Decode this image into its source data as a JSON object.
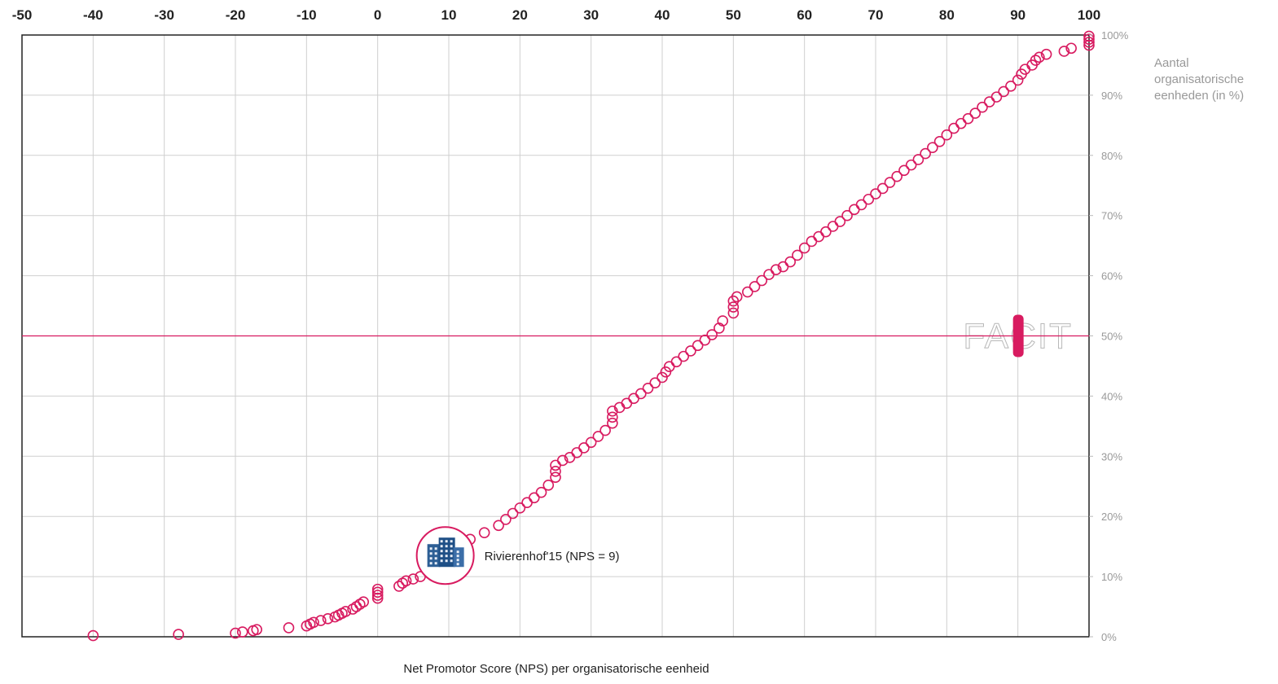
{
  "chart_data": {
    "type": "scatter",
    "xlabel": "Net Promotor Score (NPS) per organisatorische eenheid",
    "ylabel": [
      "Aantal",
      "organisatorische",
      "eenheden (in %)"
    ],
    "xlim": [
      -50,
      100
    ],
    "ylim": [
      0,
      100
    ],
    "x_ticks": [
      "-50",
      "-40",
      "-30",
      "-20",
      "-10",
      "0",
      "10",
      "20",
      "30",
      "40",
      "50",
      "60",
      "70",
      "80",
      "90",
      "100"
    ],
    "x_tick_values": [
      -50,
      -40,
      -30,
      -20,
      -10,
      0,
      10,
      20,
      30,
      40,
      50,
      60,
      70,
      80,
      90,
      100
    ],
    "y_ticks": [
      "0%",
      "10%",
      "20%",
      "30%",
      "40%",
      "50%",
      "60%",
      "70%",
      "80%",
      "90%",
      "100%"
    ],
    "y_tick_values": [
      0,
      10,
      20,
      30,
      40,
      50,
      60,
      70,
      80,
      90,
      100
    ],
    "grid": true,
    "reference_line": {
      "y": 50,
      "color": "#d81b60"
    },
    "highlight": {
      "x": 9.5,
      "y": 13.5,
      "label": "Rivierenhof'15 (NPS = 9)",
      "icon": "building-icon"
    },
    "watermark": "FACIT",
    "series": [
      {
        "marker": "open-circle",
        "color": "#d81b60",
        "points": [
          [
            -40,
            0.2
          ],
          [
            -28,
            0.4
          ],
          [
            -20,
            0.6
          ],
          [
            -19,
            0.8
          ],
          [
            -17.5,
            1.0
          ],
          [
            -17,
            1.2
          ],
          [
            -12.5,
            1.5
          ],
          [
            -10,
            1.8
          ],
          [
            -9.5,
            2.1
          ],
          [
            -9,
            2.4
          ],
          [
            -8,
            2.7
          ],
          [
            -7,
            3.0
          ],
          [
            -6,
            3.3
          ],
          [
            -5.5,
            3.6
          ],
          [
            -5,
            3.9
          ],
          [
            -4.5,
            4.2
          ],
          [
            -3.5,
            4.6
          ],
          [
            -3,
            5.0
          ],
          [
            -2.5,
            5.4
          ],
          [
            -2,
            5.8
          ],
          [
            0,
            6.4
          ],
          [
            0,
            6.9
          ],
          [
            0,
            7.4
          ],
          [
            0,
            7.9
          ],
          [
            3,
            8.4
          ],
          [
            3.5,
            8.9
          ],
          [
            4,
            9.3
          ],
          [
            5,
            9.6
          ],
          [
            6,
            10.0
          ],
          [
            9,
            13.0
          ],
          [
            10,
            14.0
          ],
          [
            11,
            15.0
          ],
          [
            13,
            16.2
          ],
          [
            15,
            17.3
          ],
          [
            17,
            18.5
          ],
          [
            18,
            19.5
          ],
          [
            19,
            20.5
          ],
          [
            20,
            21.4
          ],
          [
            21,
            22.3
          ],
          [
            22,
            23.1
          ],
          [
            23,
            24.0
          ],
          [
            24,
            25.2
          ],
          [
            25,
            26.5
          ],
          [
            25,
            27.5
          ],
          [
            25,
            28.5
          ],
          [
            26,
            29.3
          ],
          [
            27,
            29.8
          ],
          [
            28,
            30.6
          ],
          [
            29,
            31.4
          ],
          [
            30,
            32.3
          ],
          [
            31,
            33.3
          ],
          [
            32,
            34.3
          ],
          [
            33,
            35.5
          ],
          [
            33,
            36.5
          ],
          [
            33,
            37.5
          ],
          [
            34,
            38.1
          ],
          [
            35,
            38.8
          ],
          [
            36,
            39.6
          ],
          [
            37,
            40.4
          ],
          [
            38,
            41.3
          ],
          [
            39,
            42.2
          ],
          [
            40,
            43.1
          ],
          [
            40.5,
            44.0
          ],
          [
            41,
            44.9
          ],
          [
            42,
            45.7
          ],
          [
            43,
            46.6
          ],
          [
            44,
            47.5
          ],
          [
            45,
            48.4
          ],
          [
            46,
            49.3
          ],
          [
            47,
            50.2
          ],
          [
            48,
            51.3
          ],
          [
            48.5,
            52.5
          ],
          [
            50,
            53.8
          ],
          [
            50,
            54.8
          ],
          [
            50,
            55.8
          ],
          [
            50.5,
            56.5
          ],
          [
            52,
            57.3
          ],
          [
            53,
            58.2
          ],
          [
            54,
            59.2
          ],
          [
            55,
            60.2
          ],
          [
            56,
            61.0
          ],
          [
            57,
            61.5
          ],
          [
            58,
            62.3
          ],
          [
            59,
            63.4
          ],
          [
            60,
            64.6
          ],
          [
            61,
            65.7
          ],
          [
            62,
            66.5
          ],
          [
            63,
            67.3
          ],
          [
            64,
            68.2
          ],
          [
            65,
            69.0
          ],
          [
            66,
            70.0
          ],
          [
            67,
            71.0
          ],
          [
            68,
            71.8
          ],
          [
            69,
            72.7
          ],
          [
            70,
            73.6
          ],
          [
            71,
            74.5
          ],
          [
            72,
            75.5
          ],
          [
            73,
            76.5
          ],
          [
            74,
            77.5
          ],
          [
            75,
            78.4
          ],
          [
            76,
            79.3
          ],
          [
            77,
            80.3
          ],
          [
            78,
            81.3
          ],
          [
            79,
            82.3
          ],
          [
            80,
            83.4
          ],
          [
            81,
            84.5
          ],
          [
            82,
            85.3
          ],
          [
            83,
            86.1
          ],
          [
            84,
            87.0
          ],
          [
            85,
            88.0
          ],
          [
            86,
            88.9
          ],
          [
            87,
            89.7
          ],
          [
            88,
            90.6
          ],
          [
            89,
            91.5
          ],
          [
            90,
            92.5
          ],
          [
            90.5,
            93.5
          ],
          [
            91,
            94.3
          ],
          [
            92,
            95.0
          ],
          [
            92.5,
            95.8
          ],
          [
            93,
            96.3
          ],
          [
            94,
            96.8
          ],
          [
            96.5,
            97.3
          ],
          [
            97.5,
            97.8
          ],
          [
            100,
            98.3
          ],
          [
            100,
            98.8
          ],
          [
            100,
            99.3
          ],
          [
            100,
            99.8
          ]
        ]
      }
    ]
  }
}
